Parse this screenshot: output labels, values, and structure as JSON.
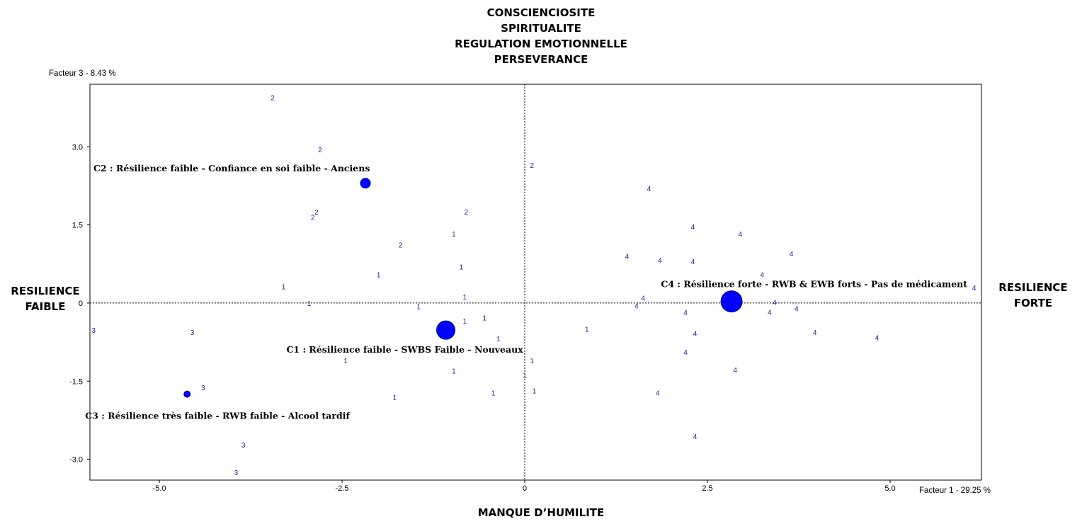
{
  "poles": {
    "top": [
      "CONSCIENCIOSITE",
      "SPIRITUALITE",
      "REGULATION EMOTIONNELLE",
      "PERSEVERANCE"
    ],
    "bottom": [
      "MANQUE D’HUMILITE"
    ],
    "left": [
      "RESILIENCE",
      "FAIBLE"
    ],
    "right": [
      "RESILIENCE",
      "FORTE"
    ]
  },
  "colors": {
    "points": "#1c1ca8",
    "centroids": "#0000ff",
    "axis": "#000000"
  },
  "chart_data": {
    "type": "scatter",
    "xlabel": "Facteur 1  -  29.25 %",
    "ylabel": "Facteur 3  -  8.43 %",
    "xlim": [
      -5.95,
      6.25
    ],
    "ylim": [
      -3.4,
      4.2
    ],
    "x_ticks": [
      -5.0,
      -2.5,
      0,
      2.5,
      5.0
    ],
    "x_tick_labels": [
      "-5.0",
      "-2.5",
      "0",
      "2.5",
      "5.0"
    ],
    "y_ticks": [
      -3.0,
      -1.5,
      0,
      1.5,
      3.0
    ],
    "y_tick_labels": [
      "-3.0",
      "-1.5",
      "0",
      "1.5",
      "3.0"
    ],
    "grid": false,
    "reference_lines": {
      "x": 0,
      "y": 0,
      "style": "dotted"
    },
    "points": [
      {
        "label": "2",
        "x": -3.45,
        "y": 3.95
      },
      {
        "label": "2",
        "x": -2.8,
        "y": 2.95
      },
      {
        "label": "2",
        "x": 0.1,
        "y": 2.65
      },
      {
        "label": "2",
        "x": -2.85,
        "y": 1.75
      },
      {
        "label": "2",
        "x": -2.9,
        "y": 1.65
      },
      {
        "label": "2",
        "x": -0.8,
        "y": 1.75
      },
      {
        "label": "2",
        "x": -1.7,
        "y": 1.12
      },
      {
        "label": "1",
        "x": -0.97,
        "y": 1.33
      },
      {
        "label": "1",
        "x": -0.87,
        "y": 0.7
      },
      {
        "label": "1",
        "x": -2.0,
        "y": 0.55
      },
      {
        "label": "1",
        "x": -3.3,
        "y": 0.32
      },
      {
        "label": "1",
        "x": -0.82,
        "y": 0.12
      },
      {
        "label": "1",
        "x": -2.95,
        "y": 0.0
      },
      {
        "label": "1",
        "x": -1.45,
        "y": -0.06
      },
      {
        "label": "1",
        "x": -0.82,
        "y": -0.34
      },
      {
        "label": "1",
        "x": -0.55,
        "y": -0.28
      },
      {
        "label": "1",
        "x": -0.36,
        "y": -0.68
      },
      {
        "label": "1",
        "x": 0.85,
        "y": -0.5
      },
      {
        "label": "1",
        "x": -2.45,
        "y": -1.1
      },
      {
        "label": "1",
        "x": 0.1,
        "y": -1.1
      },
      {
        "label": "1",
        "x": 0.0,
        "y": -1.38
      },
      {
        "label": "1",
        "x": -0.97,
        "y": -1.3
      },
      {
        "label": "1",
        "x": 0.13,
        "y": -1.68
      },
      {
        "label": "1",
        "x": -0.43,
        "y": -1.72
      },
      {
        "label": "1",
        "x": -1.78,
        "y": -1.8
      },
      {
        "label": "3",
        "x": -5.9,
        "y": -0.52
      },
      {
        "label": "3",
        "x": -4.55,
        "y": -0.56
      },
      {
        "label": "3",
        "x": -4.4,
        "y": -1.62
      },
      {
        "label": "3",
        "x": -3.85,
        "y": -2.72
      },
      {
        "label": "3",
        "x": -3.95,
        "y": -3.25
      },
      {
        "label": "4",
        "x": 1.7,
        "y": 2.2
      },
      {
        "label": "4",
        "x": 2.3,
        "y": 1.47
      },
      {
        "label": "4",
        "x": 2.95,
        "y": 1.33
      },
      {
        "label": "4",
        "x": 1.4,
        "y": 0.9
      },
      {
        "label": "4",
        "x": 1.85,
        "y": 0.83
      },
      {
        "label": "4",
        "x": 2.3,
        "y": 0.8
      },
      {
        "label": "4",
        "x": 3.65,
        "y": 0.95
      },
      {
        "label": "4",
        "x": 3.25,
        "y": 0.55
      },
      {
        "label": "4",
        "x": 6.15,
        "y": 0.3
      },
      {
        "label": "4",
        "x": 1.62,
        "y": 0.1
      },
      {
        "label": "4",
        "x": 1.53,
        "y": -0.05
      },
      {
        "label": "4",
        "x": 3.42,
        "y": 0.02
      },
      {
        "label": "4",
        "x": 3.72,
        "y": -0.1
      },
      {
        "label": "4",
        "x": 3.35,
        "y": -0.17
      },
      {
        "label": "4",
        "x": 2.2,
        "y": -0.18
      },
      {
        "label": "4",
        "x": 2.33,
        "y": -0.58
      },
      {
        "label": "4",
        "x": 3.97,
        "y": -0.56
      },
      {
        "label": "4",
        "x": 4.82,
        "y": -0.66
      },
      {
        "label": "4",
        "x": 2.2,
        "y": -0.94
      },
      {
        "label": "4",
        "x": 2.88,
        "y": -1.28
      },
      {
        "label": "4",
        "x": 1.82,
        "y": -1.72
      },
      {
        "label": "4",
        "x": 2.33,
        "y": -2.56
      }
    ],
    "centroids": [
      {
        "name": "C2 : Résilience faible - Confiance en soi faible - Anciens",
        "x": -2.18,
        "y": 2.3,
        "size": 7
      },
      {
        "name": "C1 : Résilience faible - SWBS Faible - Nouveaux",
        "x": -1.08,
        "y": -0.52,
        "size": 13
      },
      {
        "name": "C3 : Résilience très faible - RWB faible - Alcool tardif",
        "x": -4.62,
        "y": -1.75,
        "size": 4.5
      },
      {
        "name": "C4 : Résilience forte - RWB & EWB forts - Pas de médicament",
        "x": 2.83,
        "y": 0.03,
        "size": 15
      }
    ]
  }
}
